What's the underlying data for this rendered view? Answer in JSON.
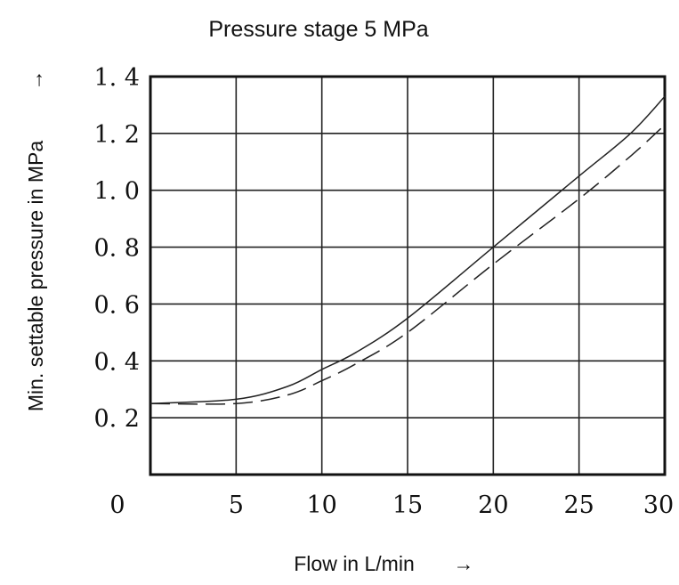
{
  "chart_data": {
    "type": "line",
    "title": "Pressure stage 5 MPa",
    "xlabel": "Flow in L/min",
    "xlabel_arrow": "→",
    "ylabel": "Min. settable pressure in MPa",
    "ylabel_arrow": "→",
    "xlim": [
      0,
      30
    ],
    "ylim": [
      0,
      1.4
    ],
    "x_ticks": [
      0,
      5,
      10,
      15,
      20,
      25,
      30
    ],
    "x_tick_labels": [
      "0",
      "5",
      "10",
      "15",
      "20",
      "25",
      "30"
    ],
    "y_ticks": [
      0.2,
      0.4,
      0.6,
      0.8,
      1.0,
      1.2,
      1.4
    ],
    "y_tick_labels": [
      "0. 2",
      "0. 4",
      "0. 6",
      "0. 8",
      "1. 0",
      "1. 2",
      "1. 4"
    ],
    "grid": true,
    "series": [
      {
        "style": "solid",
        "x": [
          0,
          5,
          8,
          10,
          12,
          15,
          20,
          25,
          28,
          30
        ],
        "y": [
          0.25,
          0.265,
          0.31,
          0.37,
          0.43,
          0.55,
          0.8,
          1.05,
          1.2,
          1.33
        ]
      },
      {
        "style": "dashed",
        "x": [
          0,
          5,
          8,
          10,
          12,
          15,
          20,
          25,
          28,
          30
        ],
        "y": [
          0.25,
          0.25,
          0.28,
          0.33,
          0.39,
          0.5,
          0.74,
          0.97,
          1.12,
          1.23
        ]
      }
    ]
  }
}
